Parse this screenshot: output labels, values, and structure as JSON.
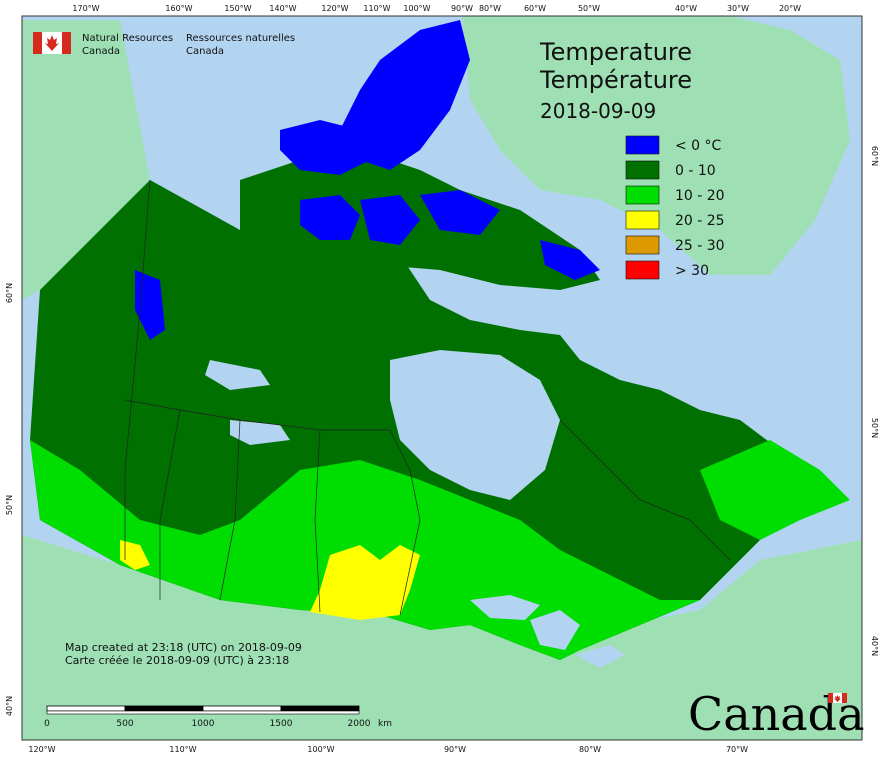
{
  "agency": {
    "name_en_line1": "Natural Resources",
    "name_en_line2": "Canada",
    "name_fr_line1": "Ressources naturelles",
    "name_fr_line2": "Canada"
  },
  "title": {
    "en": "Temperature",
    "fr": "Température",
    "date": "2018-09-09"
  },
  "legend": [
    {
      "label": "< 0 °C",
      "color": "#0000ff"
    },
    {
      "label": "0 - 10",
      "color": "#007000"
    },
    {
      "label": "10 - 20",
      "color": "#00dd00"
    },
    {
      "label": "20 - 25",
      "color": "#ffff00"
    },
    {
      "label": "25 - 30",
      "color": "#dd9900"
    },
    {
      "label": "> 30",
      "color": "#ff0000"
    }
  ],
  "credit": {
    "en": "Map created at 23:18 (UTC) on 2018-09-09",
    "fr": "Carte créée le 2018-09-09 (UTC) à 23:18"
  },
  "scale_bar": {
    "ticks": [
      "0",
      "500",
      "1000",
      "1500",
      "2000"
    ],
    "unit": "km"
  },
  "wordmark": "Canada",
  "graticule": {
    "top": [
      "170°W",
      "160°W",
      "150°W",
      "140°W",
      "120°W",
      "110°W",
      "100°W",
      "90°W",
      "80°W",
      "60°W",
      "50°W",
      "40°W",
      "30°W",
      "20°W"
    ],
    "bottom": [
      "120°W",
      "110°W",
      "100°W",
      "90°W",
      "80°W",
      "70°W"
    ],
    "left": [
      "60°N",
      "50°N",
      "40°N"
    ],
    "right": [
      "60°N",
      "50°N",
      "40°N"
    ]
  },
  "colors": {
    "ocean": "#b3d4f0",
    "land_other": "#9ee0b4",
    "border": "#222222"
  }
}
